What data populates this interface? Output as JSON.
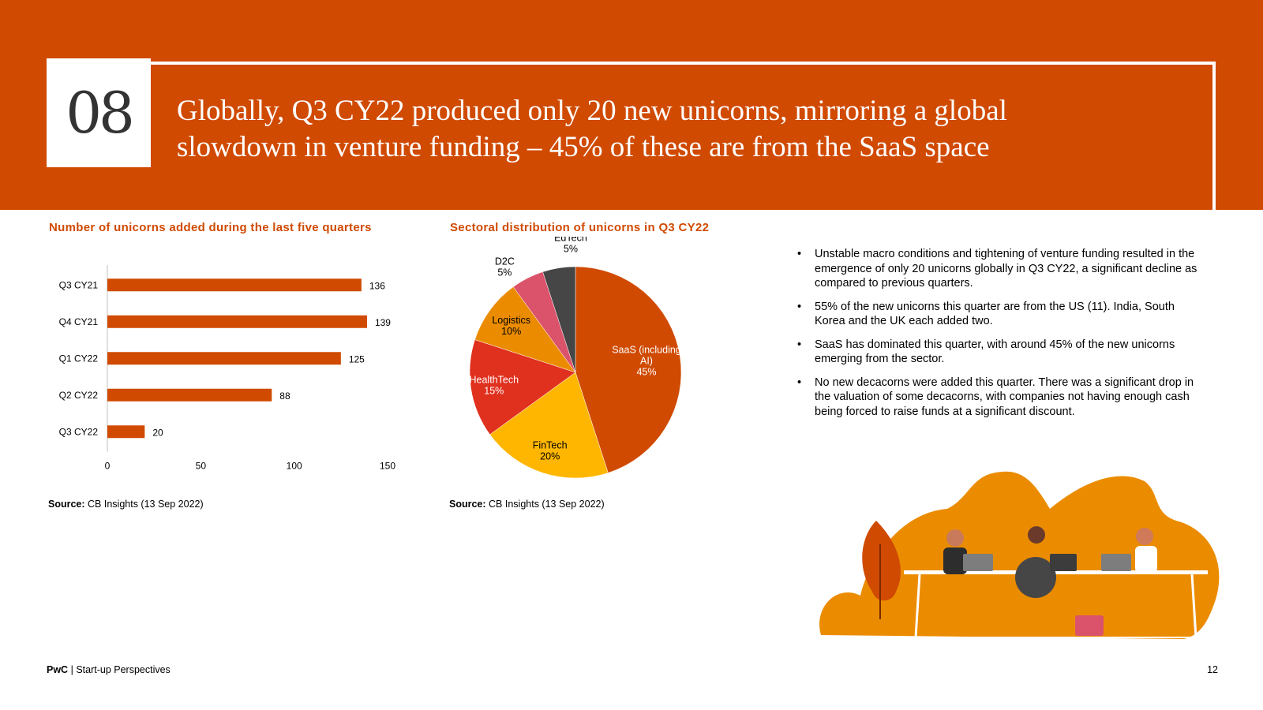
{
  "slide": {
    "number": "08",
    "title": "Globally, Q3 CY22 produced only 20 new unicorns, mirroring a global slowdown in venture funding – 45% of these are from the SaaS space"
  },
  "colors": {
    "brand": "#D04A02",
    "bar": "#D04A02",
    "pie": [
      "#D04A02",
      "#FFB600",
      "#E0301E",
      "#EB8C00",
      "#DB536A",
      "#464646"
    ]
  },
  "bar_chart": {
    "title": "Number of unicorns added during the last five quarters",
    "source_label": "Source:",
    "source_text": "CB Insights (13 Sep 2022)"
  },
  "pie_chart": {
    "title": "Sectoral distribution of unicorns in Q3 CY22",
    "source_label": "Source:",
    "source_text": "CB Insights (13 Sep 2022)"
  },
  "chart_data": [
    {
      "type": "bar",
      "orientation": "horizontal",
      "title": "Number of unicorns added during the last five quarters",
      "categories": [
        "Q3 CY21",
        "Q4 CY21",
        "Q1 CY22",
        "Q2 CY22",
        "Q3 CY22"
      ],
      "values": [
        136,
        139,
        125,
        88,
        20
      ],
      "xlim": [
        0,
        150
      ],
      "xticks": [
        0,
        50,
        100,
        150
      ],
      "data_labels": true,
      "grid": false
    },
    {
      "type": "pie",
      "title": "Sectoral distribution of unicorns in Q3 CY22",
      "slices": [
        {
          "label": "SaaS (including AI)",
          "value": 45,
          "value_label": "45%"
        },
        {
          "label": "FinTech",
          "value": 20,
          "value_label": "20%"
        },
        {
          "label": "HealthTech",
          "value": 15,
          "value_label": "15%"
        },
        {
          "label": "Logistics",
          "value": 10,
          "value_label": "10%"
        },
        {
          "label": "D2C",
          "value": 5,
          "value_label": "5%"
        },
        {
          "label": "EdTech",
          "value": 5,
          "value_label": "5%"
        }
      ]
    }
  ],
  "bullets": [
    "Unstable macro conditions and tightening of venture funding resulted in the emergence of only 20 unicorns globally in Q3 CY22, a significant decline as compared to previous quarters.",
    "55% of the new unicorns this quarter are from the US (11). India, South Korea and the UK each added two.",
    "SaaS has dominated this quarter, with around 45% of the new unicorns emerging from the sector.",
    "No new decacorns were added this quarter. There was a significant drop in the valuation of some decacorns, with companies not having enough cash being forced to raise funds at a significant discount."
  ],
  "footer": {
    "brand": "PwC",
    "separator": "|",
    "text": "Start-up Perspectives",
    "page": "12"
  }
}
